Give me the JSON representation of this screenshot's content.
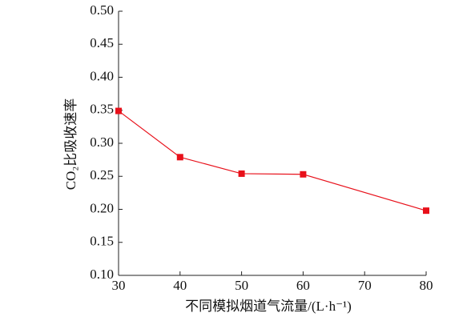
{
  "chart_data": {
    "type": "line",
    "x_label": "不同模拟烟道气流量/(L·h⁻¹)",
    "y_label": "CO₂比吸收速率",
    "x": [
      30,
      40,
      50,
      60,
      80
    ],
    "series": [
      {
        "color": "#e8101a",
        "values": [
          0.349,
          0.279,
          0.254,
          0.253,
          0.198
        ]
      }
    ],
    "xlim": [
      30,
      80
    ],
    "xticks": [
      30,
      40,
      50,
      60,
      70,
      80
    ],
    "ylim": [
      0.1,
      0.5
    ],
    "yticks": [
      {
        "value": 0.1,
        "label": "0.10"
      },
      0.15,
      {
        "value": 0.2,
        "label": "0.20"
      },
      0.25,
      {
        "value": 0.3,
        "label": "0.30"
      },
      0.35,
      {
        "value": 0.4,
        "label": "0.40"
      },
      0.45,
      {
        "value": 0.5,
        "label": "0.50"
      }
    ],
    "grid": false
  }
}
